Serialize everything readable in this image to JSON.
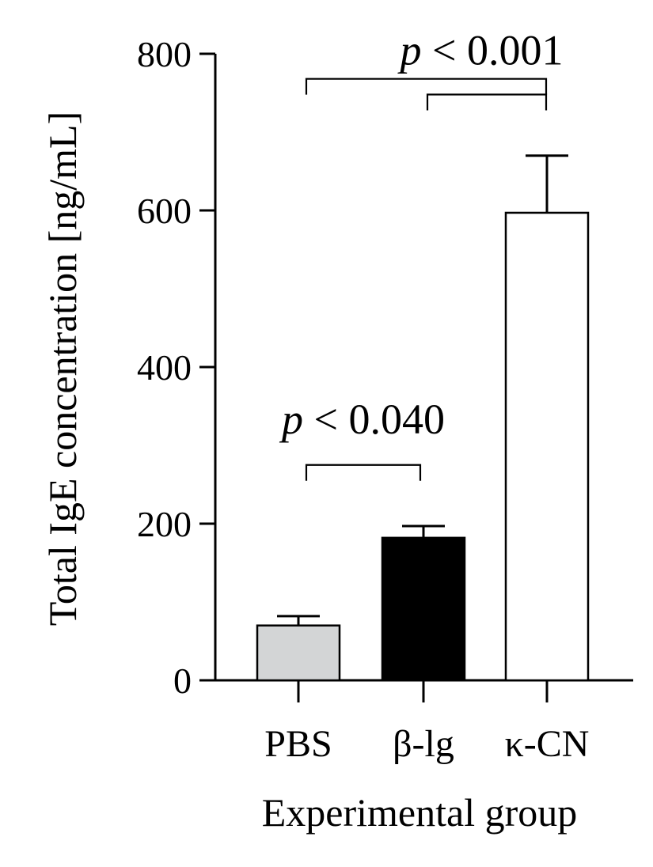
{
  "chart_data": {
    "type": "bar",
    "title": "",
    "xlabel": "Experimental group",
    "ylabel": "Total IgE concentration [ng/mL]",
    "ylim": [
      0,
      800
    ],
    "yticks": [
      0,
      200,
      400,
      600,
      800
    ],
    "categories": [
      "PBS",
      "β-lg",
      "κ-CN"
    ],
    "values": [
      70,
      182,
      597
    ],
    "errors": [
      12,
      15,
      73
    ],
    "colors": [
      "#d3d5d6",
      "#000000",
      "#ffffff"
    ],
    "grid": false,
    "legend": "none",
    "significance": [
      {
        "label_p": "p",
        "label_rest": " < 0.040",
        "from": 0,
        "to": 1,
        "y": 275
      },
      {
        "label_p": "p",
        "label_rest": " < 0.001",
        "from": 0,
        "to": 2,
        "y": 768
      },
      {
        "label_p": "p",
        "label_rest": "",
        "from": 1,
        "to": 2,
        "y": 748
      }
    ]
  }
}
